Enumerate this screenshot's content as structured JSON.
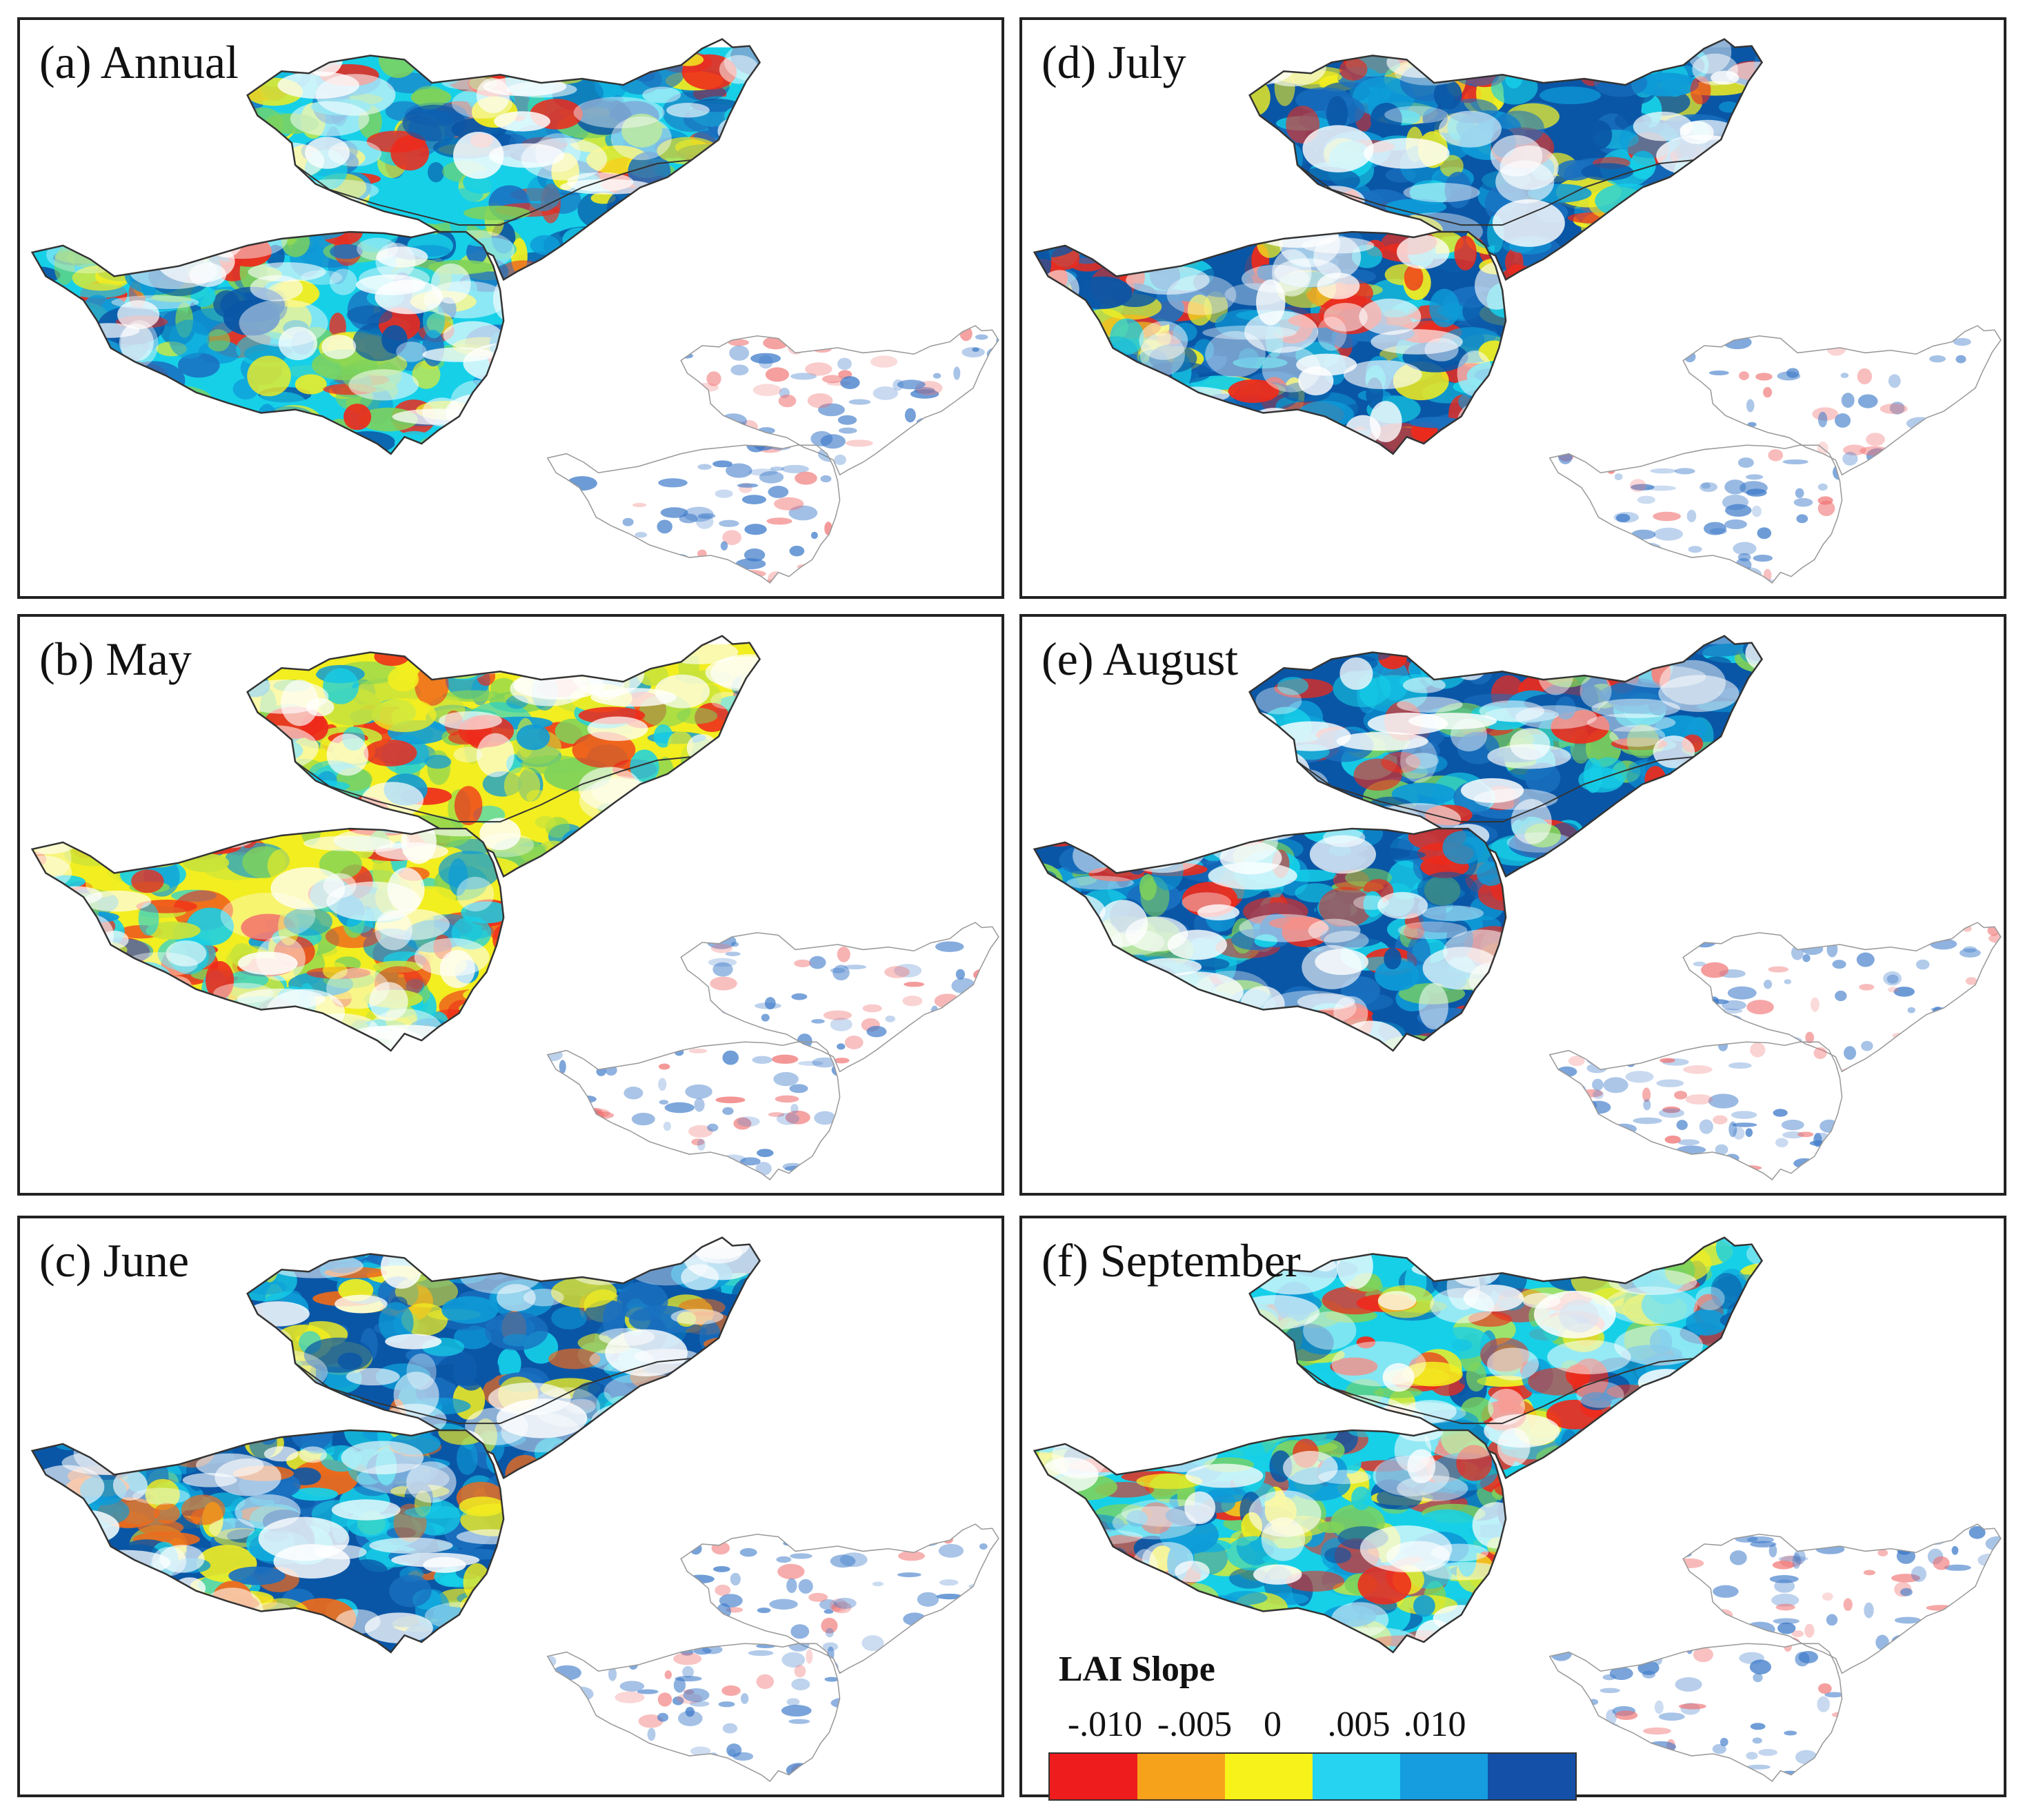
{
  "panels": [
    {
      "id": "a",
      "label": "(a) Annual",
      "palette": [
        "#16d0e8",
        "#0e9bd8",
        "#0a56a6",
        "#1a70c0",
        "#f2ee20",
        "#7fd35a"
      ],
      "hot": "#ee2a1b"
    },
    {
      "id": "b",
      "label": "(b) May",
      "palette": [
        "#f2ee20",
        "#c9e33a",
        "#16d0e8",
        "#7fd35a",
        "#0e9bd8"
      ],
      "hot": "#ee2a1b"
    },
    {
      "id": "c",
      "label": "(c) June",
      "palette": [
        "#0a56a6",
        "#0e9bd8",
        "#16d0e8",
        "#f2ee20",
        "#1a70c0"
      ],
      "hot": "#ee6a1b"
    },
    {
      "id": "d",
      "label": "(d) July",
      "palette": [
        "#0a56a6",
        "#0e9bd8",
        "#16d0e8",
        "#1a70c0",
        "#f2ee20"
      ],
      "hot": "#ee2a1b"
    },
    {
      "id": "e",
      "label": "(e) August",
      "palette": [
        "#0a56a6",
        "#0e9bd8",
        "#16d0e8",
        "#1a70c0",
        "#7fd35a"
      ],
      "hot": "#ee2a1b"
    },
    {
      "id": "f",
      "label": "(f) September",
      "palette": [
        "#16d0e8",
        "#0e9bd8",
        "#f2ee20",
        "#0a56a6",
        "#7fd35a"
      ],
      "hot": "#ee2a1b"
    }
  ],
  "legend": {
    "title": "LAI Slope",
    "ticks": [
      "-.010",
      "-.005",
      "0",
      ".005",
      ".010"
    ],
    "colors": [
      "#ee1c1c",
      "#f7a21b",
      "#f7f21a",
      "#26d3f0",
      "#159de0",
      "#1450a8"
    ]
  }
}
